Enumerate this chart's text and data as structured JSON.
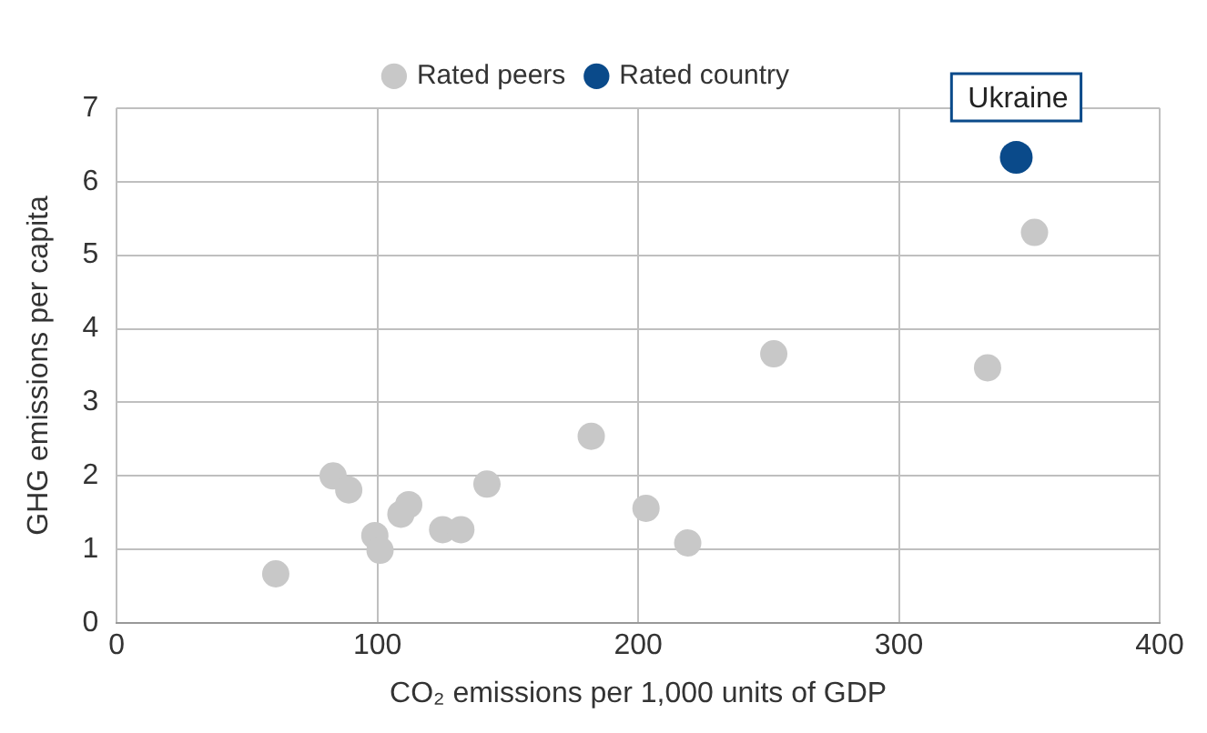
{
  "chart_data": {
    "type": "scatter",
    "xlabel": "CO₂ emissions per 1,000 units of GDP",
    "ylabel": "GHG emissions per capita",
    "xlim": [
      0,
      400
    ],
    "xticks": [
      0,
      100,
      200,
      300,
      400
    ],
    "ylim": [
      0,
      7
    ],
    "yticks": [
      0,
      1,
      2,
      3,
      4,
      5,
      6,
      7
    ],
    "grid": true,
    "legend": "top",
    "marker": "circle",
    "series": [
      {
        "name": "Rated peers",
        "color": "#c8c8c8",
        "x": [
          61,
          83,
          89,
          99,
          101,
          109,
          112,
          125,
          132,
          142,
          182,
          203,
          219,
          252,
          334,
          352
        ],
        "values": [
          0.67,
          2.0,
          1.81,
          1.19,
          0.99,
          1.48,
          1.61,
          1.27,
          1.27,
          1.89,
          2.54,
          1.56,
          1.09,
          3.66,
          3.47,
          5.31
        ]
      },
      {
        "name": "Rated country",
        "color": "#0a4a8a",
        "x": [
          345
        ],
        "values": [
          6.33
        ]
      }
    ],
    "annotations": [
      {
        "text": "Ukraine",
        "x": 345,
        "y": 6.33
      }
    ]
  }
}
